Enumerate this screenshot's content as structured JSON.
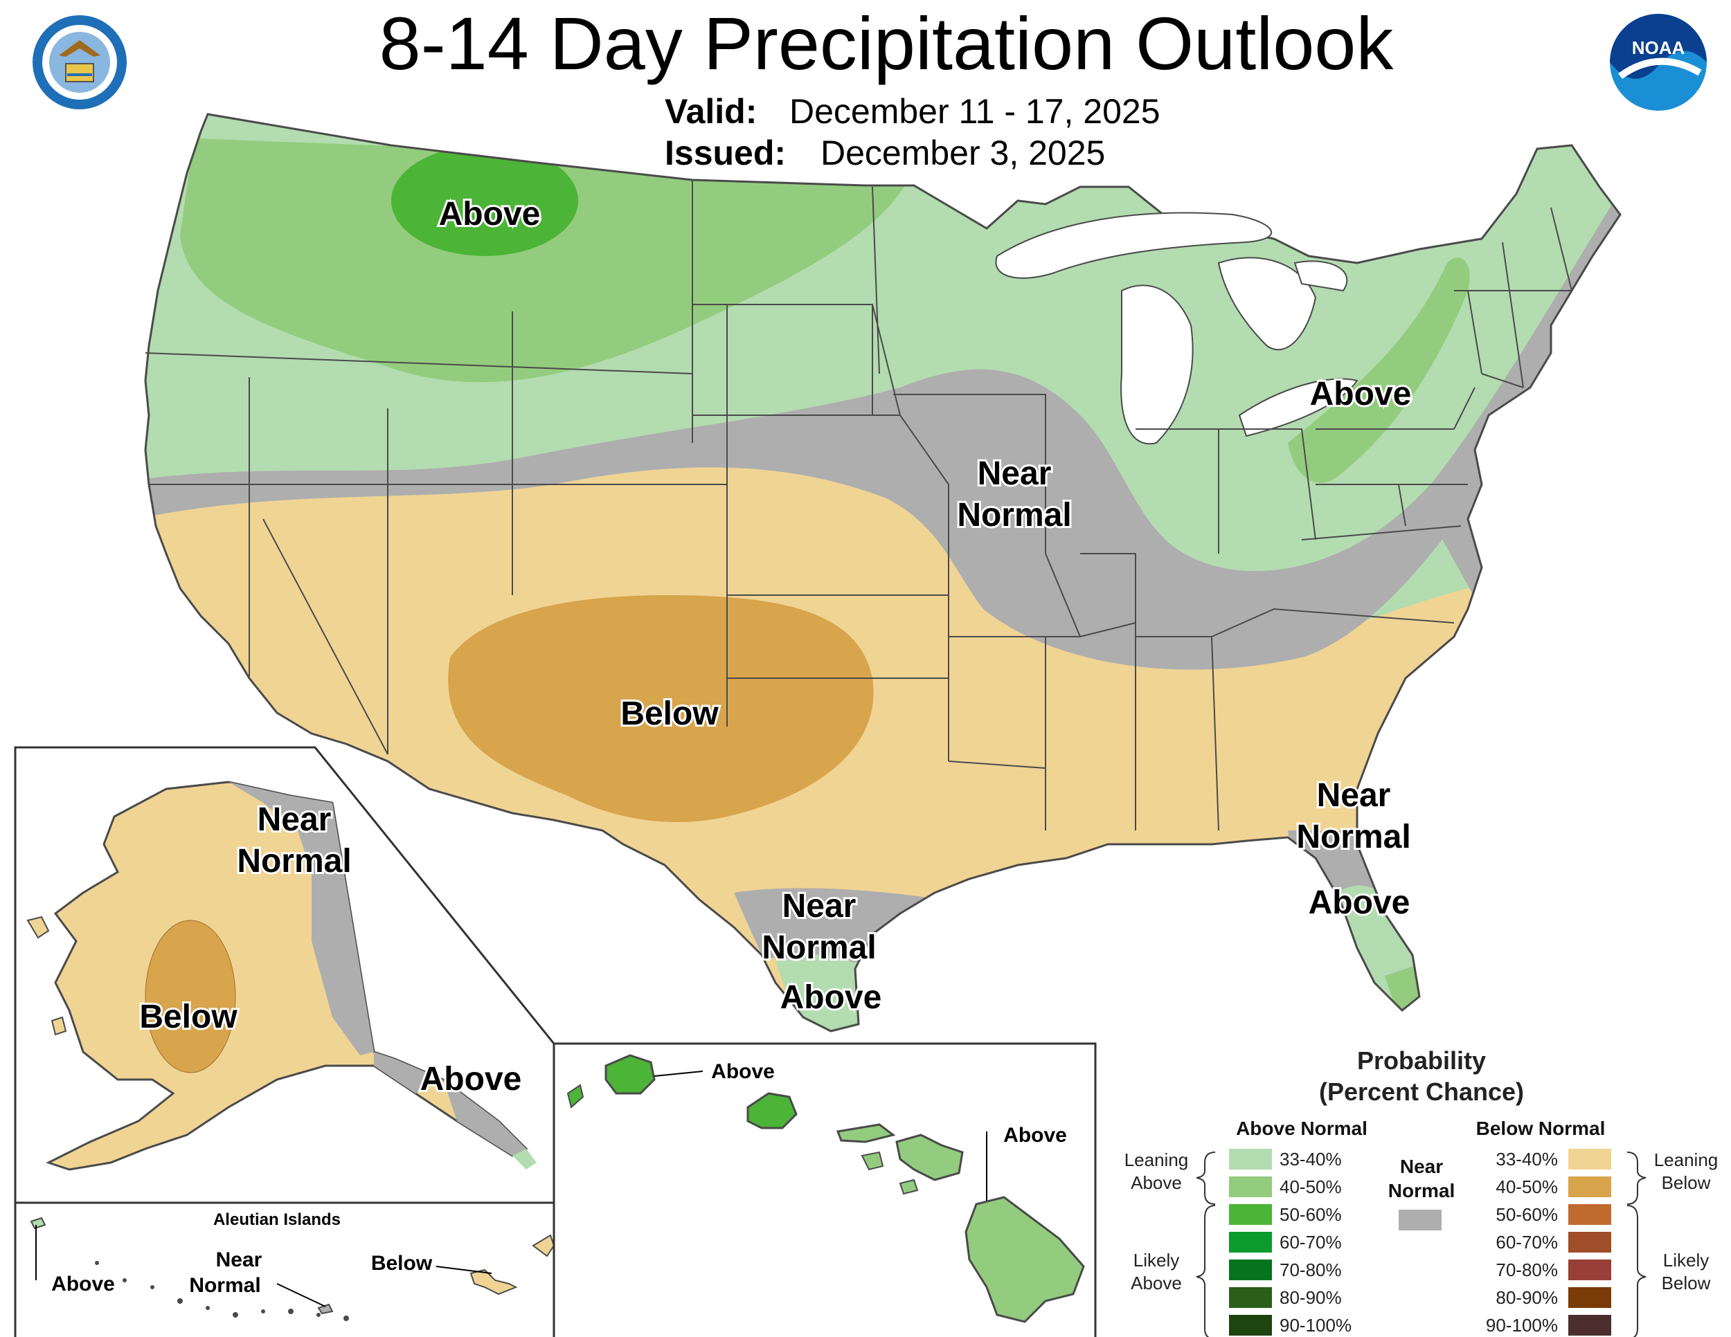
{
  "title": "8-14 Day Precipitation Outlook",
  "valid_label": "Valid:",
  "valid_value": "December 11 - 17, 2025",
  "issued_label": "Issued:",
  "issued_value": "December 3, 2025",
  "logos": {
    "left": "department-of-commerce-seal",
    "right": "noaa-logo"
  },
  "colors": {
    "leaning_above": "#b3dcb0",
    "above_40_50": "#93cc7e",
    "above_50_60": "#4cb437",
    "above_60_70": "#0c9b2d",
    "above_70_80": "#06731e",
    "above_80_90": "#2c5e1a",
    "above_90_100": "#1e4410",
    "near_normal": "#aeaeae",
    "leaning_below": "#f0d494",
    "below_40_50": "#d8a44c",
    "below_50_60": "#c06a30",
    "below_60_70": "#a04e2a",
    "below_70_80": "#984038",
    "below_80_90": "#7a3c06",
    "below_90_100": "#4c2e2e"
  },
  "conus_labels": {
    "above_northwest": "Above",
    "near_normal_central_1": "Near",
    "near_normal_central_2": "Normal",
    "above_northeast": "Above",
    "below_southwest": "Below",
    "near_normal_southeast_1": "Near",
    "near_normal_southeast_2": "Normal",
    "above_florida": "Above",
    "near_normal_texas_1": "Near",
    "near_normal_texas_2": "Normal",
    "above_texas": "Above"
  },
  "alaska_labels": {
    "near_normal_1": "Near",
    "near_normal_2": "Normal",
    "below": "Below",
    "above": "Above"
  },
  "aleutian": {
    "title": "Aleutian Islands",
    "above": "Above",
    "near_normal_1": "Near",
    "near_normal_2": "Normal",
    "below": "Below"
  },
  "hawaii_labels": {
    "above_kauai": "Above",
    "above_big_island": "Above"
  },
  "legend": {
    "title_1": "Probability",
    "title_2": "(Percent Chance)",
    "above_header": "Above Normal",
    "below_header": "Below Normal",
    "near_header_1": "Near",
    "near_header_2": "Normal",
    "leaning_above_1": "Leaning",
    "leaning_above_2": "Above",
    "likely_above_1": "Likely",
    "likely_above_2": "Above",
    "leaning_below_1": "Leaning",
    "leaning_below_2": "Below",
    "likely_below_1": "Likely",
    "likely_below_2": "Below",
    "ranges": [
      "33-40%",
      "40-50%",
      "50-60%",
      "60-70%",
      "70-80%",
      "80-90%",
      "90-100%"
    ]
  }
}
